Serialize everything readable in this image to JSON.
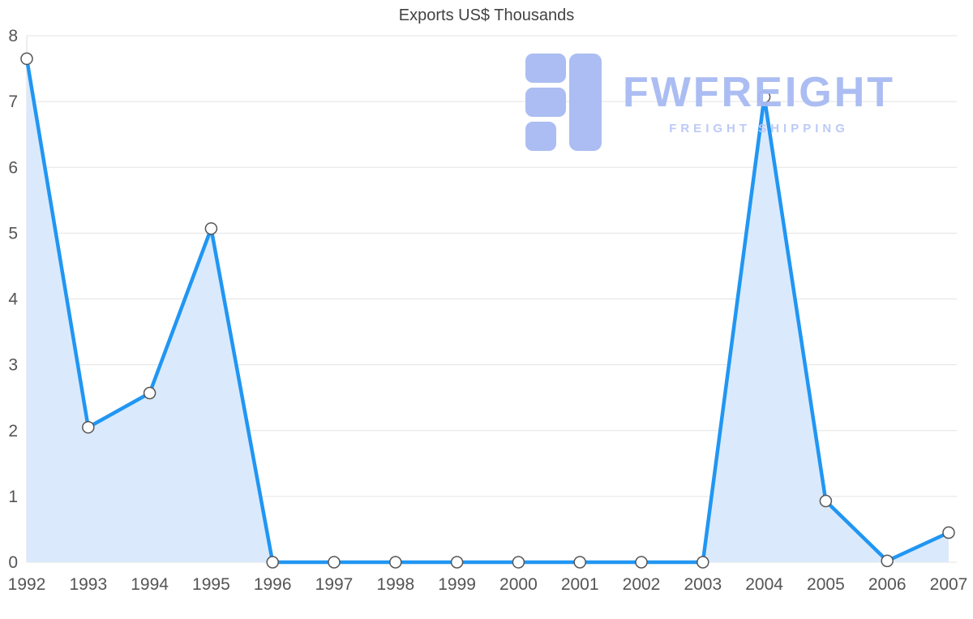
{
  "chart_data": {
    "type": "area",
    "title": "Exports US$ Thousands",
    "categories": [
      "1992",
      "1993",
      "1994",
      "1995",
      "1996",
      "1997",
      "1998",
      "1999",
      "2000",
      "2001",
      "2002",
      "2003",
      "2004",
      "2005",
      "2006",
      "2007"
    ],
    "values": [
      7.65,
      2.05,
      2.57,
      5.07,
      0,
      0,
      0,
      0,
      0,
      0,
      0,
      0,
      7.07,
      0.93,
      0.02,
      0.45
    ],
    "xlabel": "",
    "ylabel": "",
    "ylim": [
      0,
      8
    ],
    "yticks": [
      0,
      1,
      2,
      3,
      4,
      5,
      6,
      7,
      8
    ],
    "grid": "horizontal",
    "legend": "none",
    "colors": {
      "line": "#2196f3",
      "area_fill": "#daeafc",
      "marker_fill": "#ffffff",
      "marker_stroke": "#555555",
      "grid_line": "#e3e3e3",
      "axis_line": "#dddddd",
      "tick_label": "#555555",
      "title": "#424242",
      "watermark_main": "#a7baf2",
      "watermark_sub": "#b9c8f7"
    }
  },
  "watermark": {
    "brand": "FWFREIGHT",
    "tagline": "FREIGHT SHIPPING"
  }
}
